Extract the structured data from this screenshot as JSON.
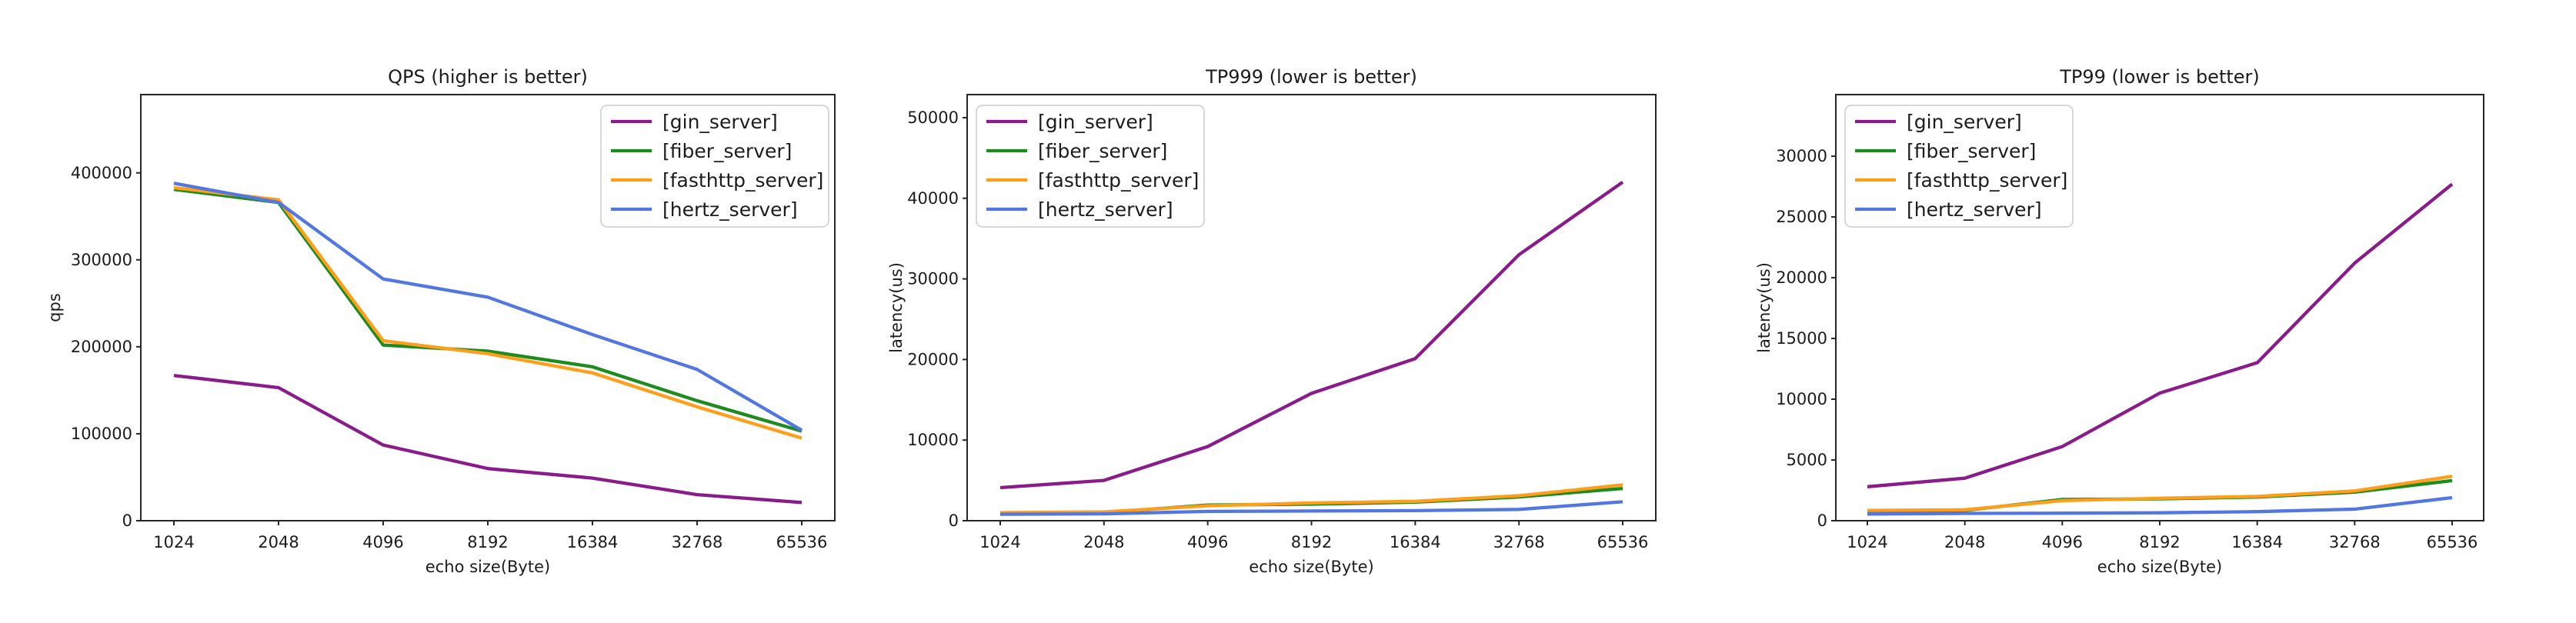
{
  "figure": {
    "background": "#ffffff",
    "axis_color": "#262626",
    "legend_border_color": "#cccccc",
    "legend_background": "#ffffff"
  },
  "chart_data": [
    {
      "type": "line",
      "title": "QPS (higher is better)",
      "xlabel": "echo size(Byte)",
      "ylabel": "qps",
      "legend_position": "upper right",
      "grid": false,
      "categories": [
        "1024",
        "2048",
        "4096",
        "8192",
        "16384",
        "32768",
        "65536"
      ],
      "y_ticks": [
        0,
        100000,
        200000,
        300000,
        400000
      ],
      "ylim": [
        0,
        490000
      ],
      "series": [
        {
          "name": "[gin_server]",
          "color": "#8a1b8a",
          "values": [
            167000,
            153000,
            87000,
            60000,
            49000,
            30000,
            21000
          ]
        },
        {
          "name": "[fiber_server]",
          "color": "#1e8b1e",
          "values": [
            381000,
            366000,
            202000,
            195000,
            177000,
            138000,
            103000
          ]
        },
        {
          "name": "[fasthttp_server]",
          "color": "#ff9e1b",
          "values": [
            383000,
            369000,
            207000,
            192000,
            170000,
            131000,
            95000
          ]
        },
        {
          "name": "[hertz_server]",
          "color": "#5377e0",
          "values": [
            388000,
            366000,
            278000,
            257000,
            214000,
            174000,
            104000
          ]
        }
      ]
    },
    {
      "type": "line",
      "title": "TP999 (lower is better)",
      "xlabel": "echo size(Byte)",
      "ylabel": "latency(us)",
      "legend_position": "upper left",
      "grid": false,
      "categories": [
        "1024",
        "2048",
        "4096",
        "8192",
        "16384",
        "32768",
        "65536"
      ],
      "y_ticks": [
        0,
        10000,
        20000,
        30000,
        40000,
        50000
      ],
      "ylim": [
        0,
        52860
      ],
      "series": [
        {
          "name": "[gin_server]",
          "color": "#8a1b8a",
          "values": [
            4100,
            5000,
            9200,
            15800,
            20100,
            33000,
            42000
          ]
        },
        {
          "name": "[fiber_server]",
          "color": "#1e8b1e",
          "values": [
            900,
            1000,
            1950,
            2050,
            2300,
            2950,
            4000
          ]
        },
        {
          "name": "[fasthttp_server]",
          "color": "#ff9e1b",
          "values": [
            1000,
            1100,
            1850,
            2200,
            2400,
            3100,
            4450
          ]
        },
        {
          "name": "[hertz_server]",
          "color": "#5377e0",
          "values": [
            800,
            850,
            1150,
            1200,
            1250,
            1400,
            2350
          ]
        }
      ]
    },
    {
      "type": "line",
      "title": "TP99 (lower is better)",
      "xlabel": "echo size(Byte)",
      "ylabel": "latency(us)",
      "legend_position": "upper left",
      "grid": false,
      "categories": [
        "1024",
        "2048",
        "4096",
        "8192",
        "16384",
        "32768",
        "65536"
      ],
      "y_ticks": [
        0,
        5000,
        10000,
        15000,
        20000,
        25000,
        30000
      ],
      "ylim": [
        0,
        35070
      ],
      "series": [
        {
          "name": "[gin_server]",
          "color": "#8a1b8a",
          "values": [
            2800,
            3500,
            6100,
            10500,
            13000,
            21200,
            27700
          ]
        },
        {
          "name": "[fiber_server]",
          "color": "#1e8b1e",
          "values": [
            800,
            850,
            1750,
            1800,
            1950,
            2350,
            3300
          ]
        },
        {
          "name": "[fasthttp_server]",
          "color": "#ff9e1b",
          "values": [
            850,
            900,
            1650,
            1850,
            2000,
            2450,
            3650
          ]
        },
        {
          "name": "[hertz_server]",
          "color": "#5377e0",
          "values": [
            550,
            600,
            620,
            650,
            750,
            950,
            1900
          ]
        }
      ]
    }
  ]
}
